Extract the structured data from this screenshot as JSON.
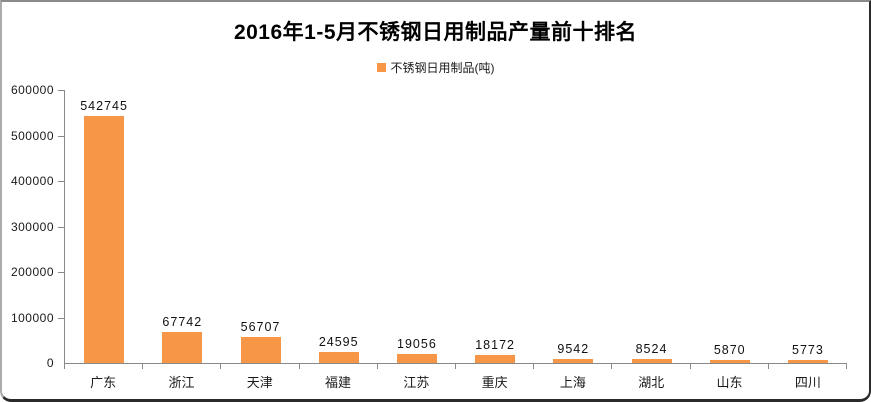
{
  "chart_data": {
    "type": "bar",
    "title": "2016年1-5月不锈钢日用制品产量前十排名",
    "legend": "不锈钢日用制品(吨)",
    "categories": [
      "广东",
      "浙江",
      "天津",
      "福建",
      "江苏",
      "重庆",
      "上海",
      "湖北",
      "山东",
      "四川"
    ],
    "values": [
      542745,
      67742,
      56707,
      24595,
      19056,
      18172,
      9542,
      8524,
      5870,
      5773
    ],
    "xlabel": "",
    "ylabel": "",
    "ylim": [
      0,
      600000
    ],
    "yticks": [
      0,
      100000,
      200000,
      300000,
      400000,
      500000,
      600000
    ],
    "grid": false,
    "legend_position": "top",
    "bar_color": "#F79646",
    "axis_color": "#898989",
    "data_labels": true
  }
}
